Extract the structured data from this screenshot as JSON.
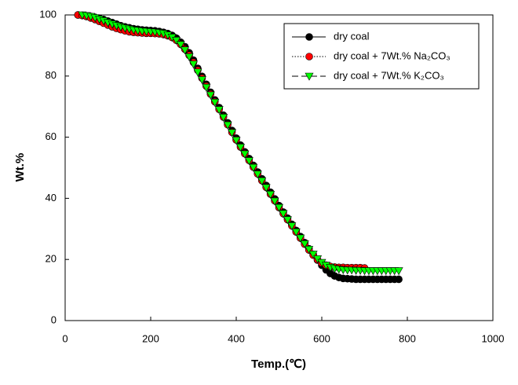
{
  "chart_data": {
    "type": "line",
    "x": [
      30,
      40,
      50,
      60,
      70,
      80,
      90,
      100,
      110,
      120,
      130,
      140,
      150,
      160,
      170,
      180,
      190,
      200,
      210,
      220,
      230,
      240,
      250,
      260,
      270,
      280,
      290,
      300,
      310,
      320,
      330,
      340,
      350,
      360,
      370,
      380,
      390,
      400,
      410,
      420,
      430,
      440,
      450,
      460,
      470,
      480,
      490,
      500,
      510,
      520,
      530,
      540,
      550,
      560,
      570,
      580,
      590,
      600,
      610,
      620,
      630,
      640,
      650,
      660,
      670,
      680,
      690,
      700,
      710,
      720,
      730,
      740,
      750,
      760,
      770,
      780
    ],
    "series": [
      {
        "name": "dry coal",
        "color": "#000000",
        "marker": "circle",
        "linestyle": "solid",
        "values": [
          100,
          99.9,
          99.7,
          99.5,
          99.2,
          98.9,
          98.5,
          98,
          97.5,
          97,
          96.5,
          96.1,
          95.8,
          95.5,
          95.3,
          95.1,
          95,
          94.9,
          94.8,
          94.6,
          94.3,
          93.9,
          93.3,
          92.4,
          91.1,
          89.6,
          87.6,
          85.2,
          82.5,
          79.9,
          77.3,
          74.7,
          72.2,
          69.7,
          67.2,
          64.7,
          62.2,
          59.7,
          57.4,
          55.2,
          53,
          50.8,
          48.6,
          46.4,
          44.2,
          42,
          39.8,
          37.6,
          35.5,
          33.5,
          31.5,
          29.5,
          27.5,
          25.5,
          23.5,
          21.6,
          19.8,
          18.1,
          16.6,
          15.4,
          14.6,
          14.1,
          13.8,
          13.7,
          13.6,
          13.5,
          13.5,
          13.5,
          13.5,
          13.5,
          13.5,
          13.5,
          13.5,
          13.5,
          13.5,
          13.5
        ]
      },
      {
        "name": "dry coal + 7Wt.% Na₂CO₃",
        "color": "#ff0000",
        "marker": "circle",
        "linestyle": "dotted",
        "values": [
          100,
          99.8,
          99.5,
          99,
          98.5,
          97.9,
          97.3,
          96.7,
          96.1,
          95.6,
          95.2,
          94.8,
          94.5,
          94.3,
          94.2,
          94.1,
          94,
          94,
          93.9,
          93.8,
          93.6,
          93.2,
          92.6,
          91.7,
          90.4,
          88.8,
          86.8,
          84.5,
          81.9,
          79.3,
          76.7,
          74.1,
          71.6,
          69.1,
          66.6,
          64.1,
          61.6,
          59.1,
          56.8,
          54.6,
          52.4,
          50.2,
          48,
          45.8,
          43.6,
          41.4,
          39.2,
          37,
          35,
          33,
          31,
          29,
          27,
          25,
          23.1,
          21.4,
          19.9,
          18.8,
          18.1,
          17.7,
          17.5,
          17.4,
          17.4,
          17.3,
          17.3,
          17.3,
          17.3,
          17.2,
          null,
          null,
          null,
          null,
          null,
          null,
          null,
          null
        ]
      },
      {
        "name": "dry coal +  7Wt.% K₂CO₃",
        "color": "#00ff00",
        "marker": "triangle-down",
        "linestyle": "dashed",
        "values": [
          null,
          100,
          99.8,
          99.5,
          99.1,
          98.6,
          98.1,
          97.5,
          97,
          96.5,
          96.1,
          95.7,
          95.4,
          95.1,
          94.9,
          94.7,
          94.6,
          94.5,
          94.4,
          94.2,
          93.9,
          93.4,
          92.7,
          91.7,
          90.3,
          88.5,
          86.3,
          83.9,
          81.3,
          78.8,
          76.3,
          73.8,
          71.4,
          69,
          66.5,
          64,
          61.5,
          59,
          56.7,
          54.5,
          52.3,
          50.1,
          47.9,
          45.7,
          43.5,
          41.3,
          39.1,
          37,
          35,
          33,
          31,
          29,
          27,
          25.1,
          23.3,
          21.7,
          20.2,
          19,
          18.1,
          17.4,
          17,
          16.8,
          16.6,
          16.5,
          16.5,
          16.4,
          16.4,
          16.3,
          16.3,
          16.3,
          16.3,
          16.3,
          16.3,
          16.3,
          16.3,
          16.3
        ]
      }
    ],
    "xlabel": "Temp.(℃)",
    "ylabel": "Wt.%",
    "xlim": [
      0,
      1000
    ],
    "xticks": [
      0,
      200,
      400,
      600,
      800,
      1000
    ],
    "ylim": [
      0,
      100
    ],
    "yticks": [
      0,
      20,
      40,
      60,
      80,
      100
    ],
    "grid": false,
    "legend": "upper right"
  }
}
